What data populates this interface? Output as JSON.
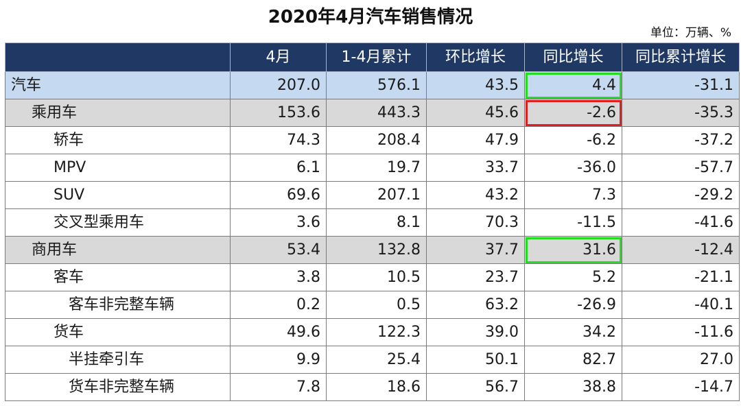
{
  "title": "2020年4月汽车销售情况",
  "unit": "单位：万辆、%",
  "headers": [
    "",
    "4月",
    "1-4月累计",
    "环比增长",
    "同比增长",
    "同比累计增长"
  ],
  "rows": [
    {
      "label": "汽车",
      "values": [
        "207.0",
        "576.1",
        "43.5",
        "4.4",
        "-31.1"
      ]
    },
    {
      "label": "乘用车",
      "values": [
        "153.6",
        "443.3",
        "45.6",
        "-2.6",
        "-35.3"
      ]
    },
    {
      "label": "轿车",
      "values": [
        "74.3",
        "208.4",
        "47.9",
        "-6.2",
        "-37.2"
      ]
    },
    {
      "label": "MPV",
      "values": [
        "6.1",
        "19.7",
        "33.7",
        "-36.0",
        "-57.7"
      ]
    },
    {
      "label": "SUV",
      "values": [
        "69.6",
        "207.1",
        "43.2",
        "7.3",
        "-29.2"
      ]
    },
    {
      "label": "交叉型乘用车",
      "values": [
        "3.6",
        "8.1",
        "70.3",
        "-11.5",
        "-41.6"
      ]
    },
    {
      "label": "商用车",
      "values": [
        "53.4",
        "132.8",
        "37.7",
        "31.6",
        "-12.4"
      ]
    },
    {
      "label": "客车",
      "values": [
        "3.8",
        "10.5",
        "23.7",
        "5.2",
        "-21.1"
      ]
    },
    {
      "label": "客车非完整车辆",
      "values": [
        "0.2",
        "0.5",
        "63.2",
        "-26.9",
        "-40.1"
      ]
    },
    {
      "label": "货车",
      "values": [
        "49.6",
        "122.3",
        "39.0",
        "34.2",
        "-11.6"
      ]
    },
    {
      "label": "半挂牵引车",
      "values": [
        "9.9",
        "25.4",
        "50.1",
        "82.7",
        "27.0"
      ]
    },
    {
      "label": "货车非完整车辆",
      "values": [
        "7.8",
        "18.6",
        "56.7",
        "38.8",
        "-14.7"
      ]
    }
  ],
  "colors": {
    "header_bg": "#1f3864",
    "highlight_blue": "#c5d9f1",
    "highlight_gray": "#d9d9d9",
    "box_green": "#22dd22",
    "box_red": "#e02020"
  }
}
